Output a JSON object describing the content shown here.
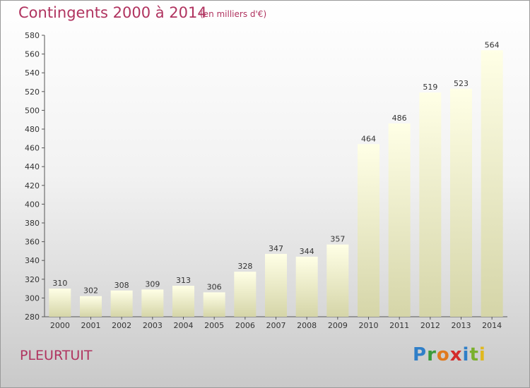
{
  "header": {
    "title": "Contingents 2000 à 2014",
    "subtitle": "(en milliers d'€)"
  },
  "footer": {
    "town": "PLEURTUIT",
    "logo_letters": [
      {
        "char": "P",
        "color": "#2f7fc8"
      },
      {
        "char": "r",
        "color": "#3b9b3b"
      },
      {
        "char": "o",
        "color": "#e07a1e"
      },
      {
        "char": "x",
        "color": "#d42a2a"
      },
      {
        "char": "i",
        "color": "#2f7fc8"
      },
      {
        "char": "t",
        "color": "#7ab02c"
      },
      {
        "char": "i",
        "color": "#e0b81e"
      }
    ]
  },
  "chart_data": {
    "type": "bar",
    "title": "Contingents 2000 à 2014",
    "subtitle": "(en milliers d'€)",
    "categories": [
      "2000",
      "2001",
      "2002",
      "2003",
      "2004",
      "2005",
      "2006",
      "2007",
      "2008",
      "2009",
      "2010",
      "2011",
      "2012",
      "2013",
      "2014"
    ],
    "values": [
      310,
      302,
      308,
      309,
      313,
      306,
      328,
      347,
      344,
      357,
      464,
      486,
      519,
      523,
      564
    ],
    "ylim": [
      280,
      580
    ],
    "yticks": [
      280,
      300,
      320,
      340,
      360,
      380,
      400,
      420,
      440,
      460,
      480,
      500,
      520,
      540,
      560,
      580
    ],
    "grid": false,
    "bar_color_top": "#ffffe6",
    "bar_color_bottom": "#d5d5a8"
  }
}
